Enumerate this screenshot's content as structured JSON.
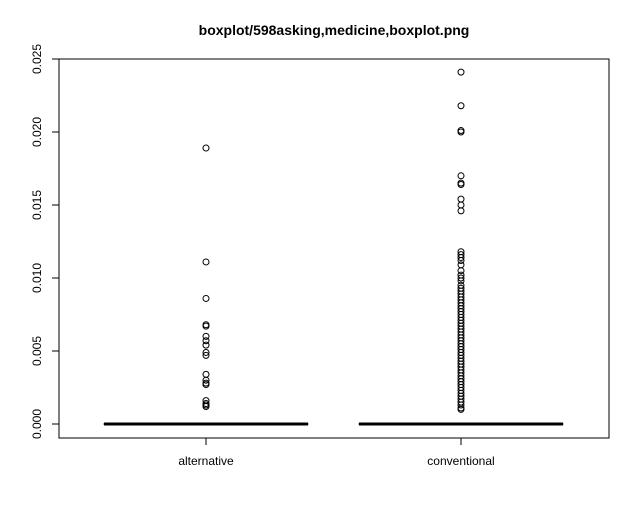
{
  "chart_data": {
    "type": "boxplot",
    "title": "boxplot/598asking,medicine,boxplot.png",
    "xlabel": "",
    "ylabel": "",
    "ylim": [
      0,
      0.025
    ],
    "y_ticks": [
      "0.000",
      "0.005",
      "0.010",
      "0.015",
      "0.020",
      "0.025"
    ],
    "y_tick_values": [
      0,
      0.005,
      0.01,
      0.015,
      0.02,
      0.025
    ],
    "categories": [
      "alternative",
      "conventional"
    ],
    "grid": false,
    "colors": {
      "line": "#000000",
      "background": "#ffffff"
    },
    "series": [
      {
        "category": "alternative",
        "median": 0,
        "q1": 0,
        "q3": 0,
        "whisker_low": 0,
        "whisker_high": 0,
        "outliers": [
          0.0189,
          0.0111,
          0.0086,
          0.0068,
          0.0067,
          0.006,
          0.0057,
          0.0054,
          0.0049,
          0.0047,
          0.0034,
          0.003,
          0.0028,
          0.0027,
          0.0016,
          0.0014,
          0.0013,
          0.0012
        ]
      },
      {
        "category": "conventional",
        "median": 0,
        "q1": 0,
        "q3": 0,
        "whisker_low": 0,
        "whisker_high": 0,
        "outliers": [
          0.0241,
          0.0218,
          0.0201,
          0.02,
          0.017,
          0.0165,
          0.0164,
          0.0154,
          0.015,
          0.0146,
          0.0118,
          0.0116,
          0.0114,
          0.0112,
          0.0109,
          0.0105,
          0.0102,
          0.01,
          0.0098,
          0.0095,
          0.0093,
          0.0091,
          0.0089,
          0.0087,
          0.0085,
          0.0083,
          0.0081,
          0.0079,
          0.0077,
          0.0075,
          0.0073,
          0.0071,
          0.0069,
          0.0067,
          0.0065,
          0.0063,
          0.0061,
          0.0059,
          0.0057,
          0.0055,
          0.0053,
          0.0051,
          0.0049,
          0.0047,
          0.0045,
          0.0043,
          0.0041,
          0.0039,
          0.0037,
          0.0035,
          0.0033,
          0.0031,
          0.0029,
          0.0027,
          0.0025,
          0.0023,
          0.0021,
          0.0019,
          0.0017,
          0.0015,
          0.0013,
          0.0011,
          0.001
        ]
      }
    ]
  }
}
